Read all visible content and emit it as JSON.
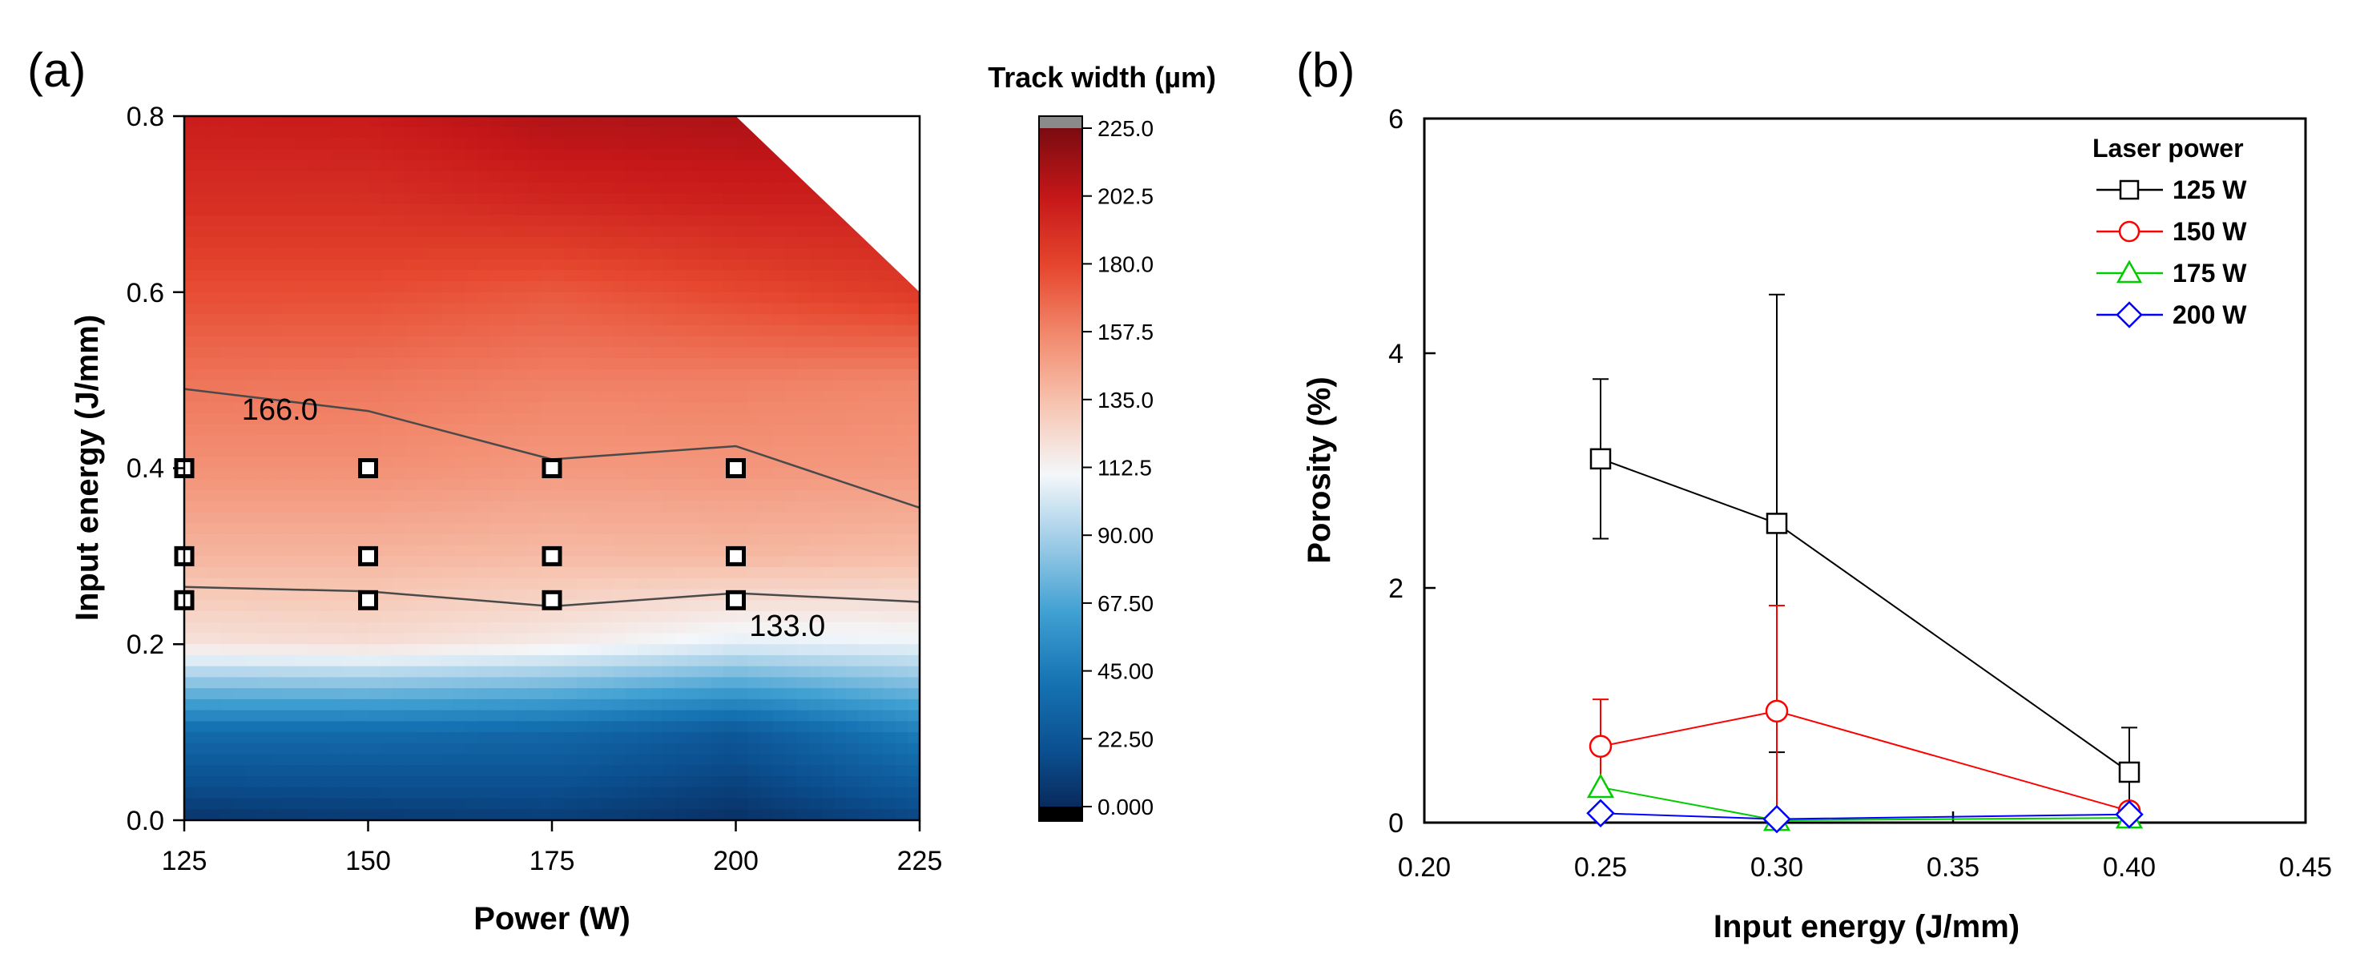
{
  "chart_data": [
    {
      "type": "heatmap",
      "panel_label": "(a)",
      "xlabel": "Power (W)",
      "ylabel": "Input energy (J/mm)",
      "xlim": [
        125,
        225
      ],
      "ylim": [
        0.0,
        0.8
      ],
      "x_ticks": [
        "125",
        "150",
        "175",
        "200",
        "225"
      ],
      "y_ticks": [
        "0.0",
        "0.2",
        "0.4",
        "0.6",
        "0.8"
      ],
      "power_grid": [
        125,
        150,
        175,
        200,
        225
      ],
      "energy_grid": [
        0.0,
        0.1,
        0.2,
        0.3,
        0.4,
        0.5,
        0.6,
        0.7,
        0.8
      ],
      "track_width_values": [
        [
          10,
          12,
          14,
          8,
          18
        ],
        [
          40,
          40,
          38,
          28,
          50
        ],
        [
          122,
          124,
          118,
          108,
          110
        ],
        [
          141,
          141,
          139,
          140,
          138
        ],
        [
          155,
          155,
          152,
          153,
          152
        ],
        [
          165,
          164,
          161,
          161,
          159
        ],
        [
          178,
          178,
          174,
          180,
          186
        ],
        [
          191,
          191,
          195,
          198,
          null
        ],
        [
          200,
          201,
          209,
          210,
          null
        ]
      ],
      "no_data_region": "top-right",
      "data_points": [
        {
          "power": 125,
          "energy": 0.4
        },
        {
          "power": 150,
          "energy": 0.4
        },
        {
          "power": 175,
          "energy": 0.4
        },
        {
          "power": 200,
          "energy": 0.4
        },
        {
          "power": 125,
          "energy": 0.3
        },
        {
          "power": 150,
          "energy": 0.3
        },
        {
          "power": 175,
          "energy": 0.3
        },
        {
          "power": 200,
          "energy": 0.3
        },
        {
          "power": 125,
          "energy": 0.25
        },
        {
          "power": 150,
          "energy": 0.25
        },
        {
          "power": 175,
          "energy": 0.25
        },
        {
          "power": 200,
          "energy": 0.25
        }
      ],
      "contours": [
        {
          "label": "166.0",
          "x": [
            125,
            150,
            175,
            200,
            225
          ],
          "y": [
            0.49,
            0.465,
            0.41,
            0.425,
            0.355
          ],
          "label_at": {
            "x": 138,
            "y": 0.468
          }
        },
        {
          "label": "133.0",
          "x": [
            125,
            150,
            175,
            200,
            225
          ],
          "y": [
            0.265,
            0.26,
            0.243,
            0.258,
            0.248
          ],
          "label_at": {
            "x": 207,
            "y": 0.222
          }
        }
      ],
      "colorbar": {
        "title": "Track width (µm)",
        "min": 0.0,
        "max": 225.0,
        "tick_labels": [
          "0.000",
          "22.50",
          "45.00",
          "67.50",
          "90.00",
          "112.5",
          "135.0",
          "157.5",
          "180.0",
          "202.5",
          "225.0"
        ],
        "tick_values": [
          0,
          22.5,
          45,
          67.5,
          90,
          112.5,
          135,
          157.5,
          180,
          202.5,
          225
        ]
      }
    },
    {
      "type": "line",
      "panel_label": "(b)",
      "xlabel": "Input energy (J/mm)",
      "ylabel": "Porosity (%)",
      "xlim": [
        0.2,
        0.45
      ],
      "ylim": [
        0,
        6
      ],
      "x_ticks": [
        "0.20",
        "0.25",
        "0.30",
        "0.35",
        "0.40",
        "0.45"
      ],
      "y_ticks": [
        "0",
        "2",
        "4",
        "6"
      ],
      "legend_title": "Laser power",
      "legend_position": "top-right",
      "series": [
        {
          "name": "125 W",
          "color": "#000000",
          "marker": "square",
          "x": [
            0.25,
            0.3,
            0.4
          ],
          "y": [
            3.1,
            2.55,
            0.43
          ],
          "err": [
            0.68,
            1.95,
            0.38
          ]
        },
        {
          "name": "150 W",
          "color": "#ff0000",
          "marker": "circle",
          "x": [
            0.25,
            0.3,
            0.4
          ],
          "y": [
            0.65,
            0.95,
            0.1
          ],
          "err": [
            0.4,
            0.9,
            0.0
          ]
        },
        {
          "name": "175 W",
          "color": "#00cc00",
          "marker": "triangle",
          "x": [
            0.25,
            0.3,
            0.4
          ],
          "y": [
            0.3,
            0.02,
            0.04
          ],
          "err": [
            0.0,
            0.0,
            0.0
          ]
        },
        {
          "name": "200 W",
          "color": "#0000ff",
          "marker": "diamond",
          "x": [
            0.25,
            0.3,
            0.4
          ],
          "y": [
            0.08,
            0.03,
            0.07
          ],
          "err": [
            0.0,
            0.0,
            0.0
          ]
        }
      ]
    }
  ]
}
